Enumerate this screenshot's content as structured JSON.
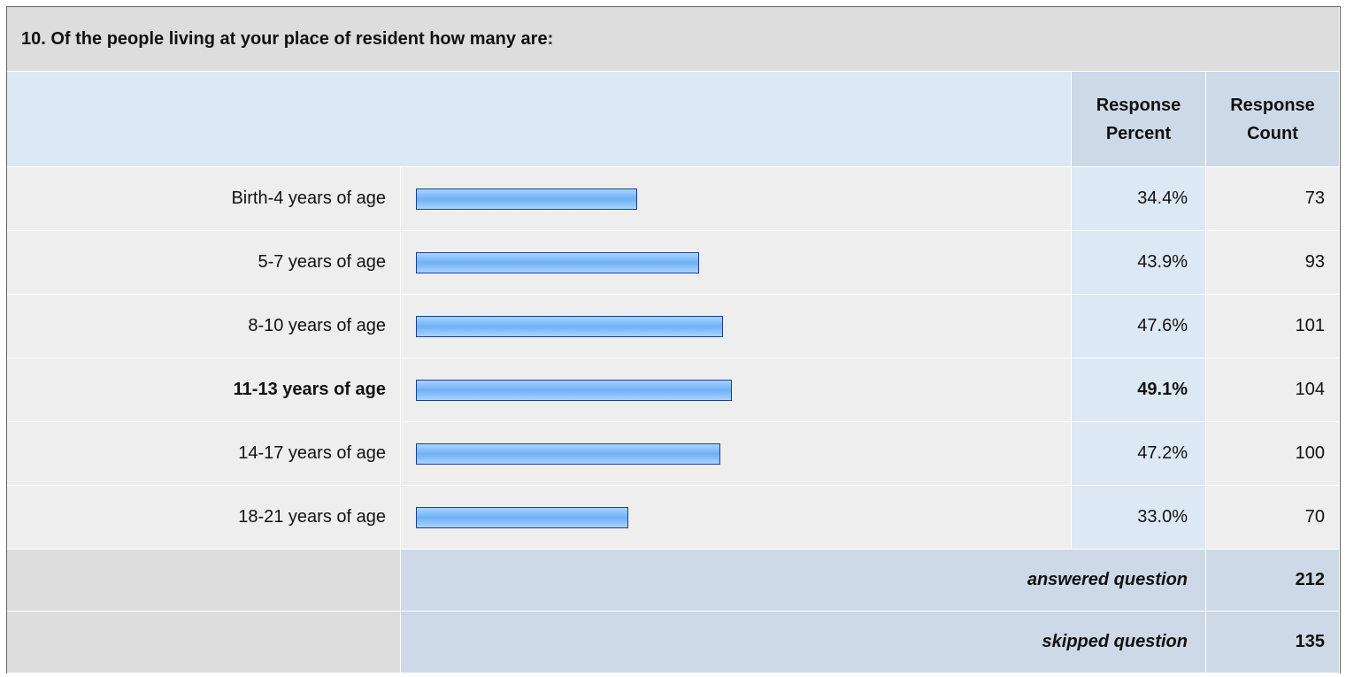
{
  "chart_data": {
    "type": "bar",
    "title": "10. Of the people living at your place of resident how many are:",
    "columns": [
      "Response Percent",
      "Response Count"
    ],
    "categories": [
      "Birth-4 years of age",
      "5-7 years of age",
      "8-10 years of age",
      "11-13 years of age",
      "14-17 years of age",
      "18-21 years of age"
    ],
    "values": [
      34.4,
      43.9,
      47.6,
      49.1,
      47.2,
      33.0
    ],
    "value_labels": [
      "34.4%",
      "43.9%",
      "47.6%",
      "49.1%",
      "47.2%",
      "33.0%"
    ],
    "counts": [
      73,
      93,
      101,
      104,
      100,
      70
    ],
    "highlight": 3,
    "xlim": [
      0,
      100
    ],
    "summary": [
      {
        "label": "answered question",
        "value": 212
      },
      {
        "label": "skipped question",
        "value": 135
      }
    ]
  }
}
